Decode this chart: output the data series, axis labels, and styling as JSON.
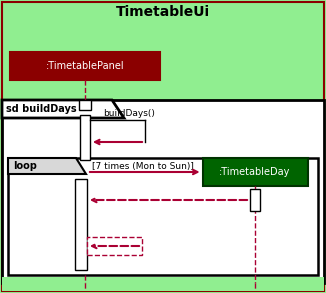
{
  "fig_width": 3.26,
  "fig_height": 2.93,
  "dpi": 100,
  "bg_green": "#90EE90",
  "white": "#FFFFFF",
  "black": "#000000",
  "dark_red": "#8B0000",
  "dark_green": "#006400",
  "arrow_color": "#AA0033",
  "title_text": "TimetableUi",
  "panel_text": ":TimetablePanel",
  "day_text": ":TimetableDay",
  "sd_label": "sd buildDays",
  "loop_label": "loop",
  "loop_guard": "[7 times (Mon to Sun)]",
  "build_msg": "buildDays()"
}
